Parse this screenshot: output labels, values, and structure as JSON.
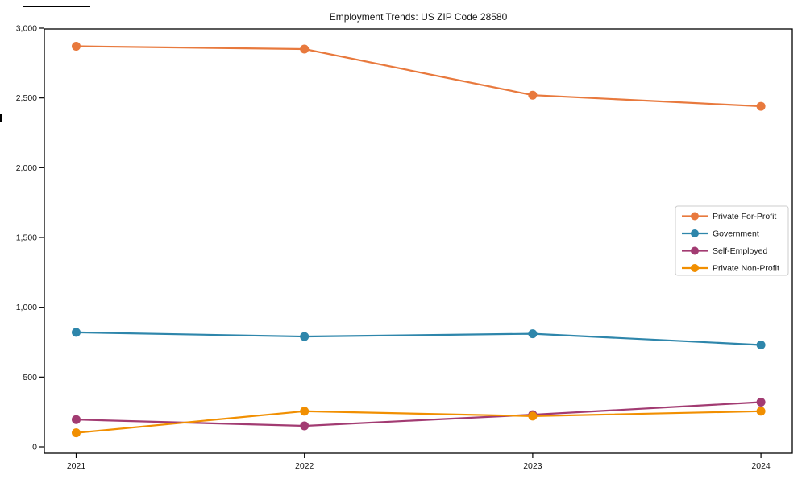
{
  "chart_data": {
    "type": "line",
    "title": "Employment Trends: US ZIP Code 28580",
    "x": [
      2021,
      2022,
      2023,
      2024
    ],
    "x_tick_labels": [
      "2021",
      "2022",
      "2023",
      "2024"
    ],
    "y_ticks": [
      0,
      500,
      1000,
      1500,
      2000,
      2500,
      3000
    ],
    "y_tick_labels": [
      "0",
      "500",
      "1,000",
      "1,500",
      "2,000",
      "2,500",
      "3,000"
    ],
    "ylim": [
      0,
      3000
    ],
    "grid": false,
    "legend_position": "middle-right",
    "series": [
      {
        "name": "Private For-Profit",
        "color": "#E8793D",
        "values": [
          2870,
          2850,
          2520,
          2440
        ]
      },
      {
        "name": "Government",
        "color": "#2E86AB",
        "values": [
          820,
          790,
          810,
          730
        ]
      },
      {
        "name": "Self-Employed",
        "color": "#A23B72",
        "values": [
          195,
          150,
          230,
          320
        ]
      },
      {
        "name": "Private Non-Profit",
        "color": "#F18F01",
        "values": [
          100,
          255,
          220,
          255
        ]
      }
    ],
    "colors": {
      "axis": "#000000",
      "text": "#151515",
      "legend_border": "#cccccc",
      "background": "#ffffff"
    }
  }
}
